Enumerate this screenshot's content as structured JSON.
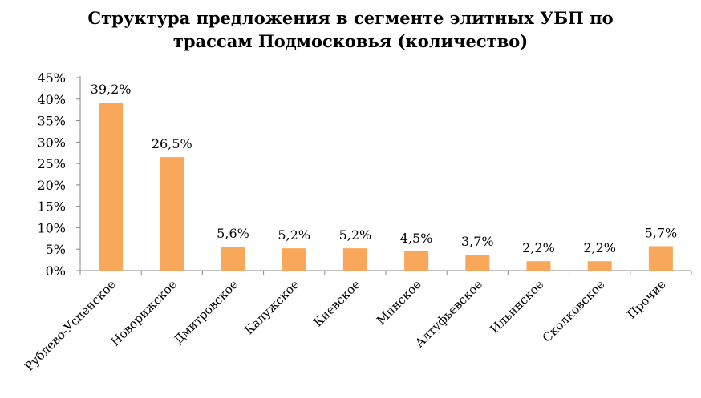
{
  "chart_data": {
    "type": "bar",
    "title_lines": [
      "Структура предложения в сегменте элитных УБП по",
      "трассам Подмосковья (количество)"
    ],
    "categories": [
      "Рублево-Успенское",
      "Новорижское",
      "Дмитровское",
      "Калужское",
      "Киевское",
      "Минское",
      "Алтуфьевское",
      "Ильинское",
      "Сколковское",
      "Прочие"
    ],
    "values": [
      39.2,
      26.5,
      5.6,
      5.2,
      5.2,
      4.5,
      3.7,
      2.2,
      2.2,
      5.7
    ],
    "data_labels": [
      "39,2%",
      "26,5%",
      "5,6%",
      "5,2%",
      "5,2%",
      "4,5%",
      "3,7%",
      "2,2%",
      "2,2%",
      "5,7%"
    ],
    "y_ticks": [
      0,
      5,
      10,
      15,
      20,
      25,
      30,
      35,
      40,
      45
    ],
    "y_tick_labels": [
      "0%",
      "5%",
      "10%",
      "15%",
      "20%",
      "25%",
      "30%",
      "35%",
      "40%",
      "45%"
    ],
    "ylim": [
      0,
      45
    ],
    "grid": false,
    "legend": "none",
    "bar_color": "#F9A85B"
  }
}
